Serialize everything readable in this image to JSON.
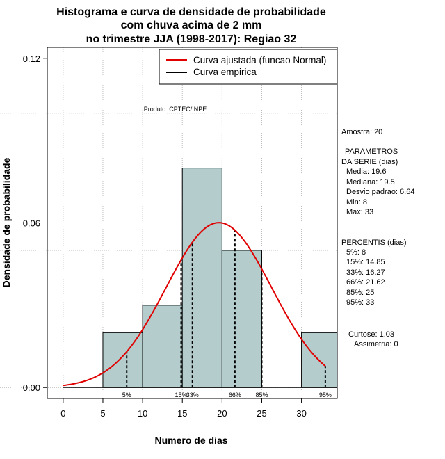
{
  "chart_data": {
    "type": "bar",
    "title": [
      "Histograma e curva de densidade de probabilidade",
      "com chuva acima de 2 mm",
      "no trimestre JJA (1998-2017): Regiao 32"
    ],
    "xlabel": "Numero de dias",
    "ylabel": "Densidade de probabilidade",
    "xlim": [
      -2,
      34.5
    ],
    "ylim": [
      -0.004,
      0.124
    ],
    "x_ticks": [
      0,
      5,
      10,
      15,
      20,
      25,
      30
    ],
    "y_ticks": [
      0.0,
      0.06,
      0.12
    ],
    "y_tick_labels": [
      "0.00",
      "0.06",
      "0.12"
    ],
    "grid": true,
    "bars": [
      {
        "x0": 5,
        "x1": 10,
        "density": 0.02
      },
      {
        "x0": 10,
        "x1": 15,
        "density": 0.03
      },
      {
        "x0": 15,
        "x1": 20,
        "density": 0.08
      },
      {
        "x0": 20,
        "x1": 25,
        "density": 0.05
      },
      {
        "x0": 25,
        "x1": 30,
        "density": 0.0
      },
      {
        "x0": 30,
        "x1": 35,
        "density": 0.02
      }
    ],
    "bar_color": "#b4cccc",
    "normal_curve": {
      "mean": 19.6,
      "sd": 6.64,
      "x_from": 0,
      "x_to": 33,
      "color": "#e00000"
    },
    "percentile_lines": [
      {
        "label": "5%",
        "x": 8
      },
      {
        "label": "15%",
        "x": 14.85
      },
      {
        "label": "33%",
        "x": 16.27
      },
      {
        "label": "66%",
        "x": 21.62
      },
      {
        "label": "85%",
        "x": 25
      },
      {
        "label": "95%",
        "x": 33
      }
    ],
    "legend": {
      "position": "top-right",
      "entries": [
        {
          "label": "Curva ajustada (funcao Normal)",
          "color": "#e00000"
        },
        {
          "label": "Curva empirica",
          "color": "#000000"
        }
      ]
    },
    "annotation_produto": "Produto: CPTEC/INPE",
    "side_text": {
      "amostra": "Amostra: 20",
      "param_title1": "PARAMETROS",
      "param_title2": "DA SERIE (dias)",
      "media": "Media: 19.6",
      "mediana": "Mediana: 19.5",
      "desvio": "Desvio padrao: 6.64",
      "min": "Min: 8",
      "max": "Max: 33",
      "perc_title": "PERCENTIS (dias)",
      "p5": "5%: 8",
      "p15": "15%: 14.85",
      "p33": "33%: 16.27",
      "p66": "66%: 21.62",
      "p85": "85%: 25",
      "p95": "95%: 33",
      "curtose": "Curtose: 1.03",
      "assimetria": "Assimetria: 0"
    }
  }
}
